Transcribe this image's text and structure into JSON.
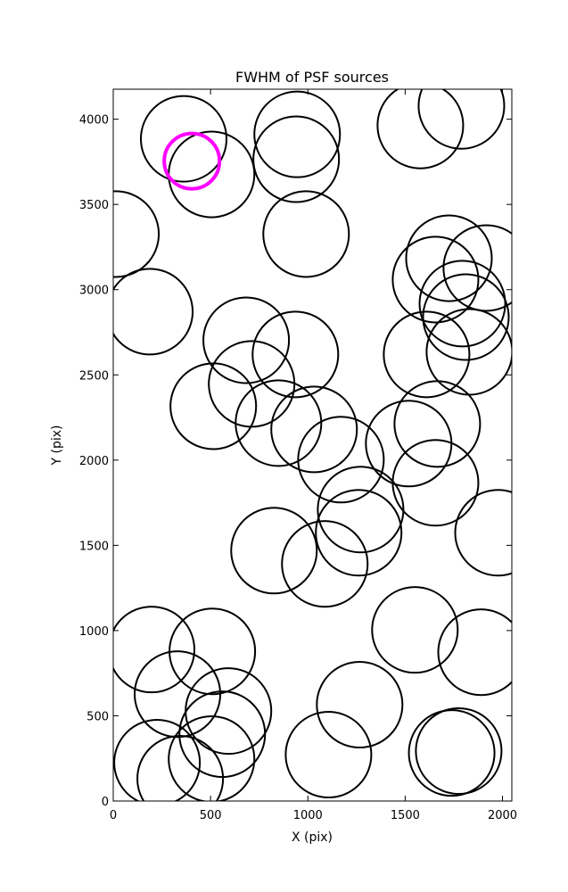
{
  "chart_data": {
    "type": "scatter",
    "title": "FWHM of PSF sources",
    "x_label": "X (pix)",
    "y_label": "Y (pix)",
    "xlim": [
      0,
      2048
    ],
    "ylim": [
      0,
      4176
    ],
    "xticks": [
      0,
      500,
      1000,
      1500,
      2000
    ],
    "yticks": [
      0,
      500,
      1000,
      1500,
      2000,
      2500,
      3000,
      3500,
      4000
    ],
    "series": [
      {
        "color": "#000000",
        "radius": 220,
        "x": [
          362,
          505,
          945,
          940,
          991,
          1578,
          1789,
          14,
          188,
          683,
          936,
          711,
          514,
          849,
          1032,
          1170,
          1518,
          1656,
          1665,
          1610,
          1725,
          1656,
          1917,
          1794,
          1812,
          1830,
          1271,
          1261,
          826,
          1087,
          1977,
          1550,
          1890,
          197,
          509,
          330,
          592,
          560,
          1266,
          1106,
          225,
          344,
          505,
          1739,
          1775
        ],
        "values": [
          3885,
          3676,
          3911,
          3765,
          3326,
          3963,
          4078,
          3326,
          2871,
          2703,
          2620,
          2447,
          2316,
          2217,
          2180,
          2003,
          2097,
          1867,
          2212,
          2620,
          3184,
          3059,
          3127,
          2918,
          2839,
          2635,
          1710,
          1574,
          1469,
          1391,
          1574,
          1004,
          873,
          889,
          878,
          627,
          528,
          392,
          565,
          272,
          225,
          131,
          246,
          282,
          293
        ]
      },
      {
        "color": "#ff00ff",
        "radius": 142,
        "x": [
          404
        ],
        "values": [
          3754
        ]
      }
    ]
  }
}
